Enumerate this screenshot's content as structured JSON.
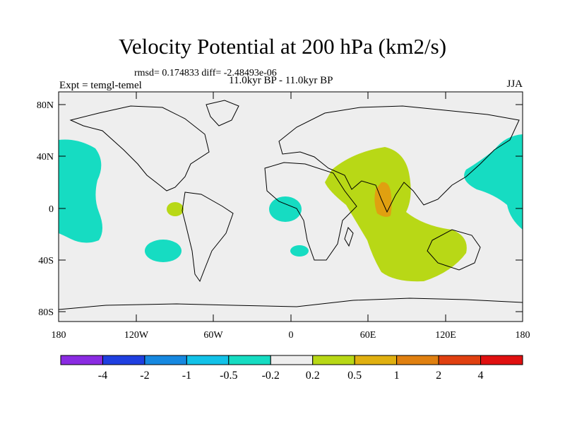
{
  "title": "Velocity Potential at 200 hPa (km2/s)",
  "subtitle_stats": "rmsd= 0.174833 diff= -2.48493e-06",
  "subtitle_period": "11.0kyr BP - 11.0kyr BP",
  "left_string": "Expt = temgl-temel",
  "right_string": "JJA",
  "lat_labels": [
    "80N",
    "40N",
    "0",
    "40S",
    "80S"
  ],
  "lon_labels": [
    "180",
    "120W",
    "60W",
    "0",
    "60E",
    "120E",
    "180"
  ],
  "colorbar": {
    "labels": [
      "-4",
      "-2",
      "-1",
      "-0.5",
      "-0.2",
      "0.2",
      "0.5",
      "1",
      "2",
      "4"
    ],
    "colors": [
      "#8a2be2",
      "#1f3fe0",
      "#1688e0",
      "#12c2e8",
      "#16dcc2",
      "#eeeeee",
      "#b8d816",
      "#e0b010",
      "#e08010",
      "#e04010",
      "#e01010"
    ]
  },
  "colors": {
    "ocean": "#eeeeee",
    "negative_area": "#16dcc2",
    "positive_area": "#b8d816",
    "strong_positive_area": "#e0a010"
  }
}
